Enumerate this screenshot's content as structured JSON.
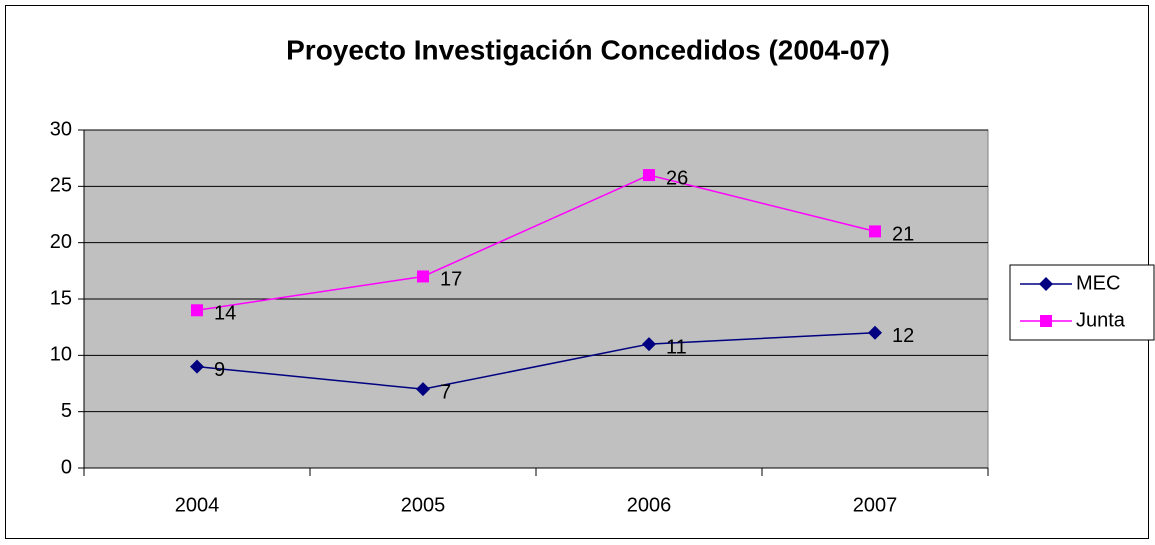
{
  "chart_data": {
    "type": "line",
    "title": "Proyecto Investigación Concedidos (2004-07)",
    "categories": [
      "2004",
      "2005",
      "2006",
      "2007"
    ],
    "series": [
      {
        "name": "MEC",
        "color": "#000080",
        "marker": "diamond",
        "values": [
          9,
          7,
          11,
          12
        ]
      },
      {
        "name": "Junta",
        "color": "#ff00ff",
        "marker": "square",
        "values": [
          14,
          17,
          26,
          21
        ]
      }
    ],
    "ylim": [
      0,
      30
    ],
    "yticks": [
      0,
      5,
      10,
      15,
      20,
      25,
      30
    ],
    "grid": true,
    "legend": "right"
  }
}
